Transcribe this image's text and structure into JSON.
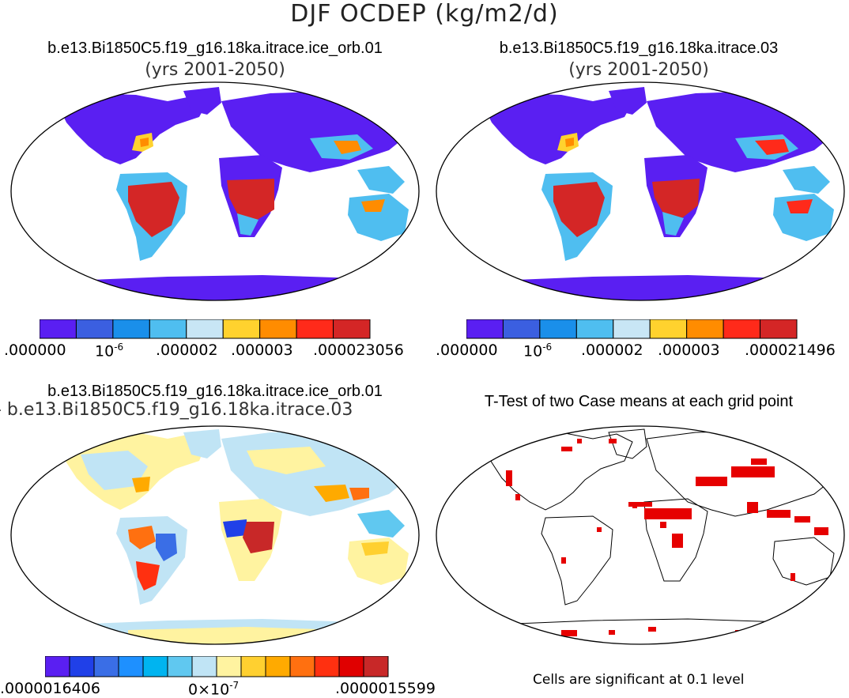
{
  "figure": {
    "main_title": "DJF OCDEP (kg/m2/d)"
  },
  "panels": {
    "top_left": {
      "title": "b.e13.Bi1850C5.f19_g16.18ka.itrace.ice_orb.01",
      "subtitle": "(yrs 2001-2050)",
      "colorbar": {
        "colors": [
          "#5a1ff2",
          "#3b5fe0",
          "#1a8fea",
          "#4fbef0",
          "#c8e6f5",
          "#ffd22e",
          "#ff8c00",
          "#ff2a1a",
          "#d42626"
        ],
        "tick_labels": [
          ".000000",
          "10",
          ".000002",
          ".000003",
          ".000023056"
        ],
        "tick_exponent": "-6"
      }
    },
    "top_right": {
      "title": "b.e13.Bi1850C5.f19_g16.18ka.itrace.03",
      "subtitle": "(yrs 2001-2050)",
      "colorbar": {
        "colors": [
          "#5a1ff2",
          "#3b5fe0",
          "#1a8fea",
          "#4fbef0",
          "#c8e6f5",
          "#ffd22e",
          "#ff8c00",
          "#ff2a1a",
          "#d42626"
        ],
        "tick_labels": [
          ".000000",
          "10",
          ".000002",
          ".000003",
          ".000021496"
        ],
        "tick_exponent": "-6"
      }
    },
    "bottom_left": {
      "title": "b.e13.Bi1850C5.f19_g16.18ka.itrace.ice_orb.01",
      "subtitle": "- b.e13.Bi1850C5.f19_g16.18ka.itrace.03",
      "colorbar": {
        "colors": [
          "#5a1ff2",
          "#2040e8",
          "#3a6ee6",
          "#1e90ff",
          "#00b4f0",
          "#60c8f0",
          "#c0e4f5",
          "#fff3a0",
          "#ffd030",
          "#ffaa00",
          "#ff7010",
          "#ff3010",
          "#e00000",
          "#c82828"
        ],
        "tick_labels": [
          ".0000016406",
          "0×10",
          ".0000015599"
        ],
        "tick_exponent": "-7"
      }
    },
    "bottom_right": {
      "title": "T-Test of two Case means at each grid point",
      "caption": "Cells are significant at 0.1 level"
    }
  }
}
